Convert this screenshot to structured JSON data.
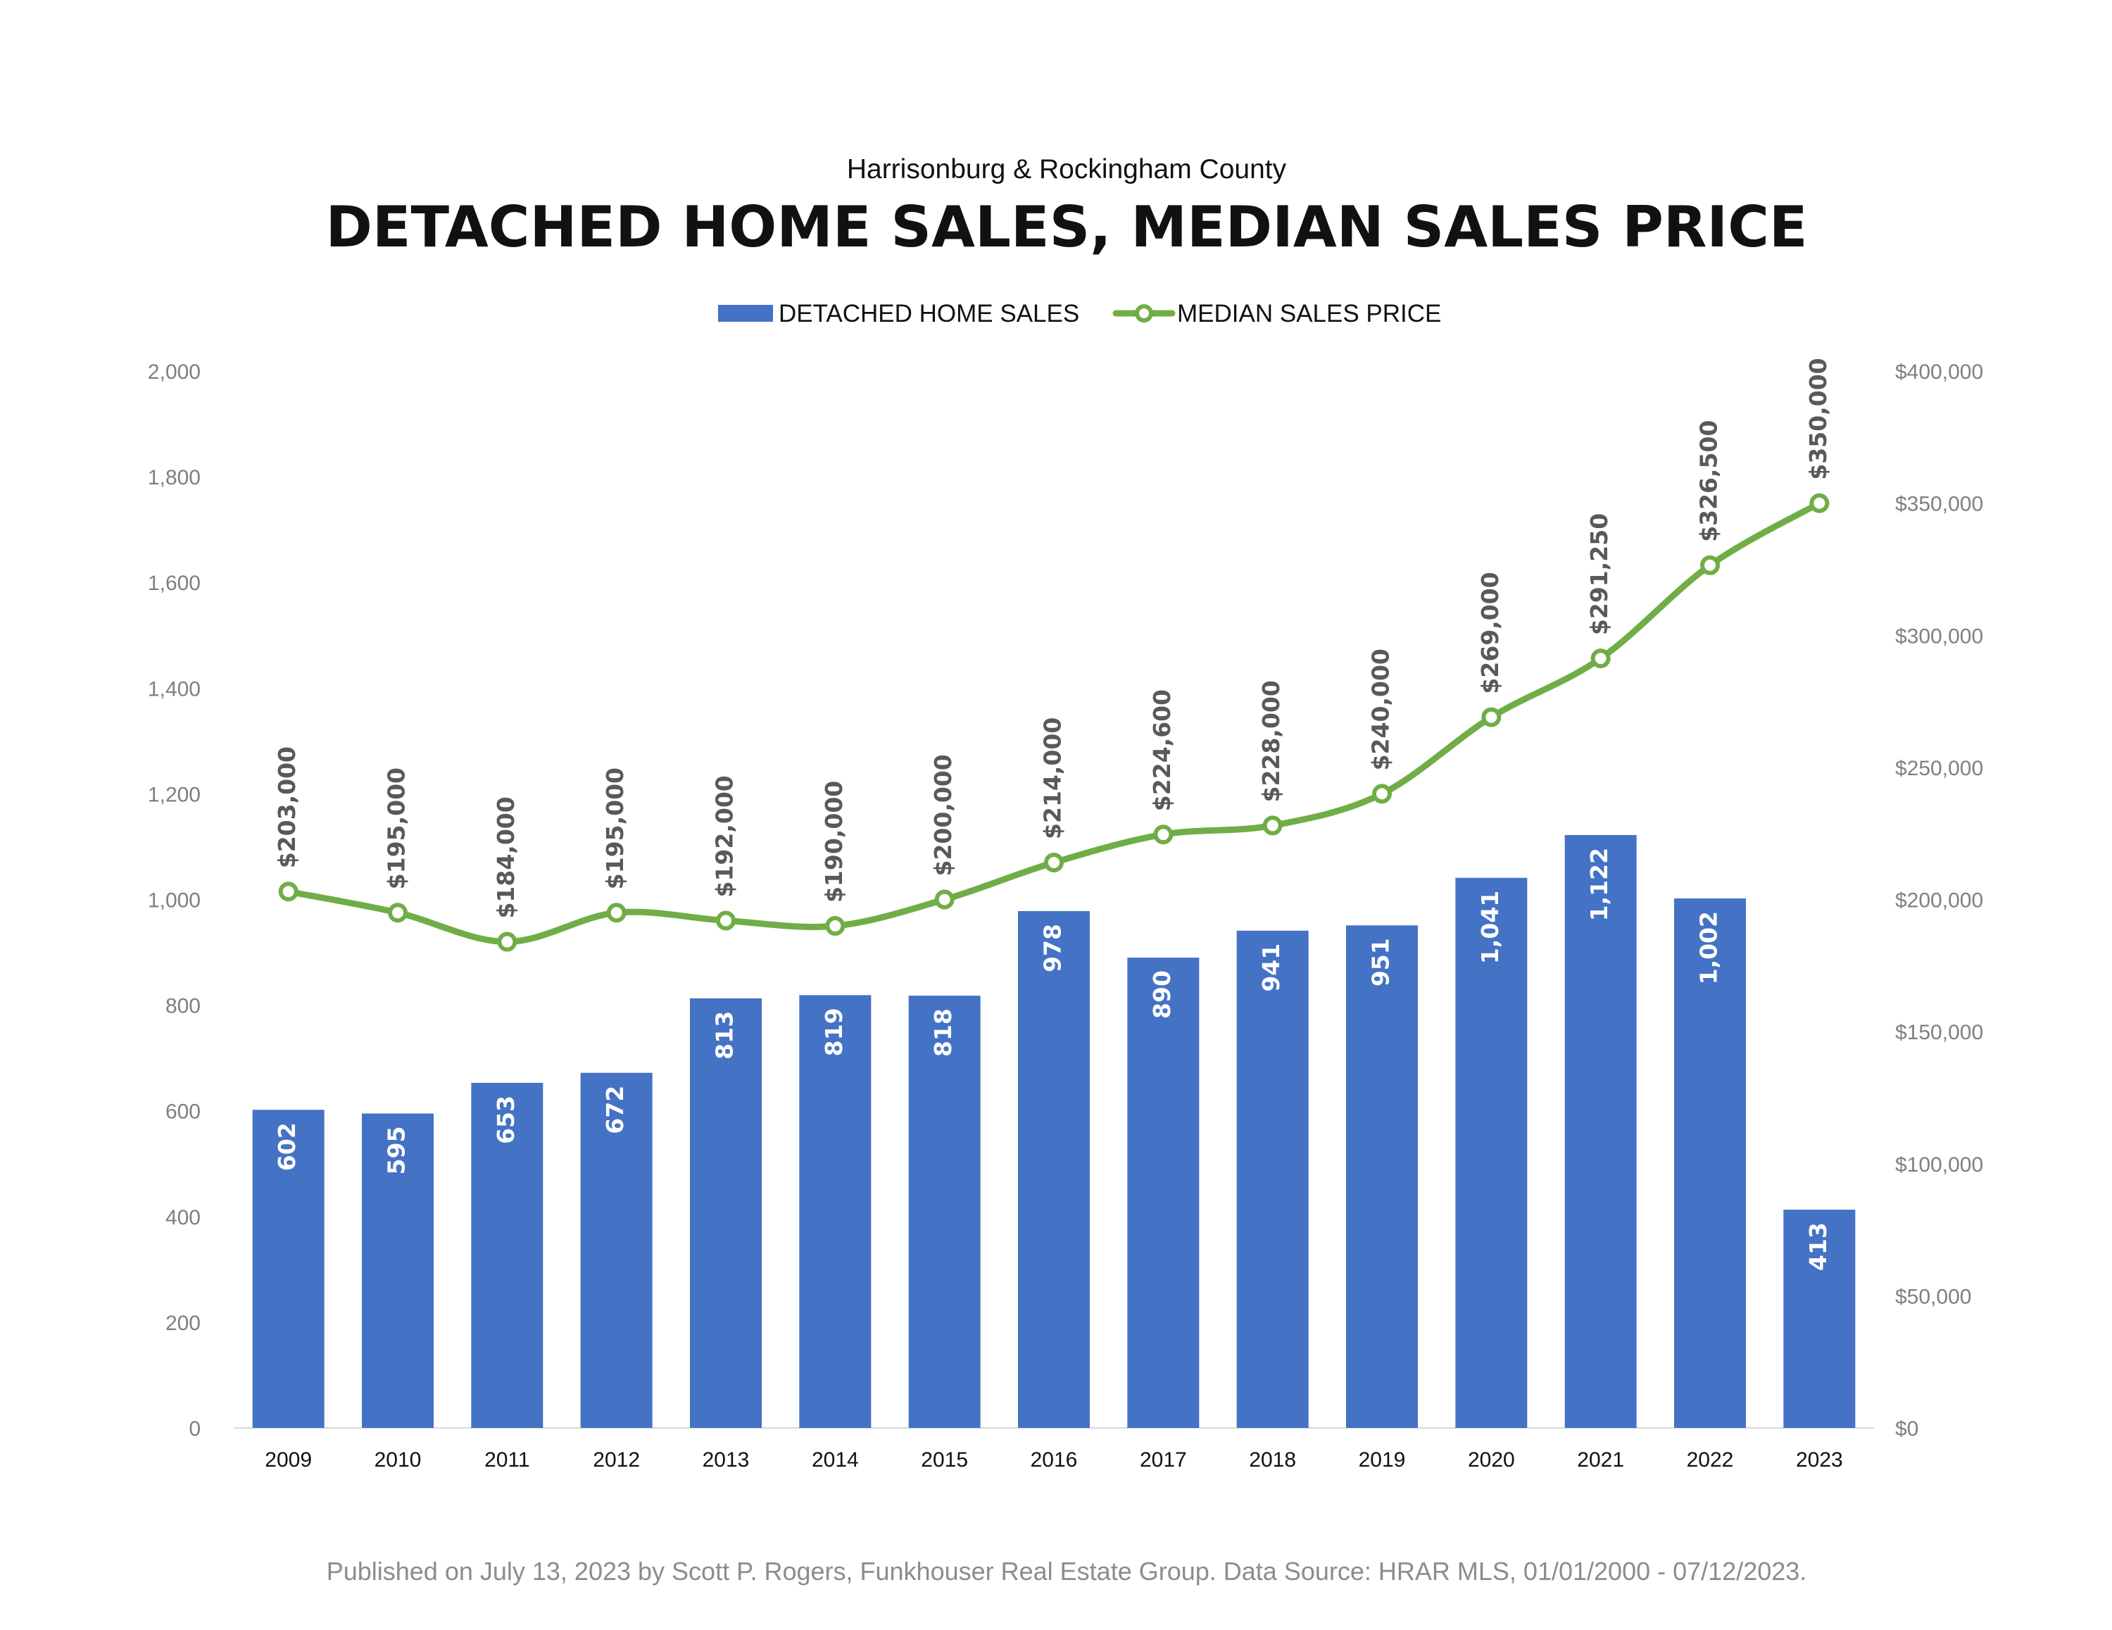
{
  "header": {
    "subtitle": "Harrisonburg & Rockingham County",
    "title": "DETACHED HOME SALES, MEDIAN SALES PRICE"
  },
  "legend": {
    "bars_label": "DETACHED HOME SALES",
    "line_label": "MEDIAN SALES PRICE"
  },
  "footer": {
    "text": "Published on July 13, 2023 by Scott P. Rogers, Funkhouser Real Estate Group. Data Source: HRAR MLS, 01/01/2000 - 07/12/2023."
  },
  "colors": {
    "bar": "#4472c4",
    "line": "#70ad47",
    "axis_text": "#7f7f7f",
    "point_label": "#595959"
  },
  "chart_data": {
    "type": "bar",
    "categories": [
      "2009",
      "2010",
      "2011",
      "2012",
      "2013",
      "2014",
      "2015",
      "2016",
      "2017",
      "2018",
      "2019",
      "2020",
      "2021",
      "2022",
      "2023"
    ],
    "series": [
      {
        "name": "DETACHED HOME SALES",
        "type": "bar",
        "axis": "left",
        "values": [
          602,
          595,
          653,
          672,
          813,
          819,
          818,
          978,
          890,
          941,
          951,
          1041,
          1122,
          1002,
          413
        ],
        "labels": [
          "602",
          "595",
          "653",
          "672",
          "813",
          "819",
          "818",
          "978",
          "890",
          "941",
          "951",
          "1,041",
          "1,122",
          "1,002",
          "413"
        ]
      },
      {
        "name": "MEDIAN SALES PRICE",
        "type": "line",
        "axis": "right",
        "values": [
          203000,
          195000,
          184000,
          195000,
          192000,
          190000,
          200000,
          214000,
          224600,
          228000,
          240000,
          269000,
          291250,
          326500,
          350000
        ],
        "labels": [
          "$203,000",
          "$195,000",
          "$184,000",
          "$195,000",
          "$192,000",
          "$190,000",
          "$200,000",
          "$214,000",
          "$224,600",
          "$228,000",
          "$240,000",
          "$269,000",
          "$291,250",
          "$326,500",
          "$350,000"
        ]
      }
    ],
    "y_left": {
      "range": [
        0,
        2000
      ],
      "ticks": [
        0,
        200,
        400,
        600,
        800,
        1000,
        1200,
        1400,
        1600,
        1800,
        2000
      ],
      "tick_labels": [
        "0",
        "200",
        "400",
        "600",
        "800",
        "1,000",
        "1,200",
        "1,400",
        "1,600",
        "1,800",
        "2,000"
      ]
    },
    "y_right": {
      "range": [
        0,
        400000
      ],
      "ticks": [
        0,
        50000,
        100000,
        150000,
        200000,
        250000,
        300000,
        350000,
        400000
      ],
      "tick_labels": [
        "$0",
        "$50,000",
        "$100,000",
        "$150,000",
        "$200,000",
        "$250,000",
        "$300,000",
        "$350,000",
        "$400,000"
      ]
    },
    "grid": false,
    "legend_position": "top-center"
  }
}
